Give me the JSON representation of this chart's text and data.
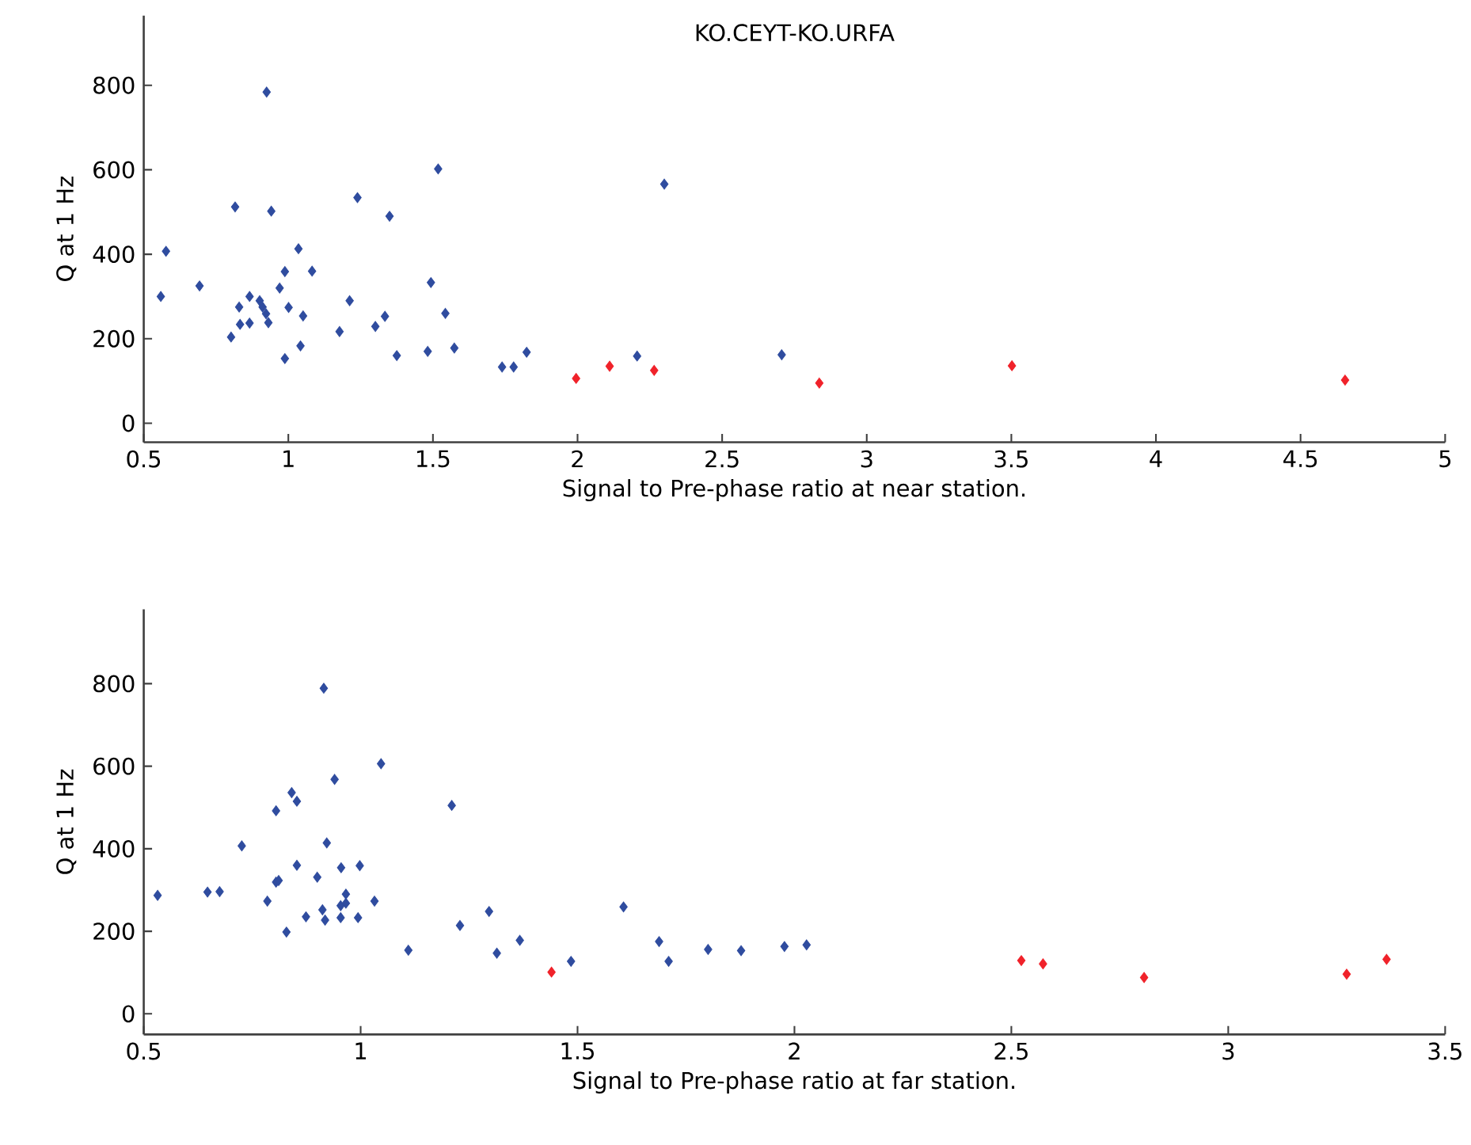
{
  "chart_data": [
    {
      "type": "scatter",
      "title": "KO.CEYT-KO.URFA",
      "xlabel": "Signal to Pre-phase ratio at near station.",
      "ylabel": "Q at 1 Hz",
      "xlim": [
        0.5,
        5
      ],
      "xticks": [
        0.5,
        1,
        1.5,
        2,
        2.5,
        3,
        3.5,
        4,
        4.5,
        5
      ],
      "ylim": [
        -45,
        965
      ],
      "yticks": [
        0,
        200,
        400,
        600,
        800
      ],
      "marker": "diamond",
      "series": [
        {
          "color": "#2f4c9f",
          "x": [
            0.577,
            0.559,
            0.693,
            0.816,
            0.925,
            0.941,
            0.802,
            0.83,
            0.833,
            0.866,
            0.866,
            0.901,
            0.911,
            0.923,
            0.931,
            0.97,
            0.988,
            1.001,
            0.988,
            1.035,
            1.051,
            1.042,
            1.082,
            1.177,
            1.212,
            1.239,
            1.301,
            1.334,
            1.35,
            1.375,
            1.482,
            1.493,
            1.518,
            1.543,
            1.574,
            1.739,
            1.779,
            1.824,
            2.206,
            2.3,
            2.706
          ],
          "values": [
            407,
            300,
            325,
            512,
            784,
            502,
            204,
            275,
            234,
            300,
            237,
            290,
            275,
            259,
            238,
            320,
            359,
            274,
            153,
            413,
            254,
            183,
            360,
            217,
            290,
            534,
            229,
            253,
            490,
            160,
            170,
            333,
            602,
            260,
            178,
            133,
            133,
            168,
            159,
            566,
            162
          ]
        },
        {
          "color": "#f0222a",
          "x": [
            1.995,
            2.111,
            2.265,
            2.836,
            3.502,
            4.654
          ],
          "values": [
            106,
            135,
            125,
            95,
            136,
            102
          ]
        }
      ]
    },
    {
      "type": "scatter",
      "xlabel": "Signal to Pre-phase ratio at far station.",
      "ylabel": "Q at 1 Hz",
      "xlim": [
        0.5,
        3.5
      ],
      "xticks": [
        0.5,
        1,
        1.5,
        2,
        2.5,
        3,
        3.5
      ],
      "ylim": [
        -50,
        980
      ],
      "yticks": [
        0,
        200,
        400,
        600,
        800
      ],
      "marker": "diamond",
      "series": [
        {
          "color": "#2f4c9f",
          "x": [
            0.532,
            0.647,
            0.675,
            0.726,
            0.785,
            0.805,
            0.805,
            0.811,
            0.829,
            0.841,
            0.853,
            0.853,
            0.874,
            0.9,
            0.912,
            0.918,
            0.915,
            0.922,
            0.94,
            0.955,
            0.954,
            0.954,
            0.966,
            0.966,
            0.994,
            0.998,
            1.032,
            1.047,
            1.11,
            1.21,
            1.229,
            1.296,
            1.314,
            1.367,
            1.485,
            1.606,
            1.688,
            1.71,
            1.801,
            1.877,
            1.977,
            2.028
          ],
          "values": [
            287,
            295,
            296,
            407,
            273,
            492,
            319,
            323,
            198,
            536,
            515,
            360,
            235,
            331,
            252,
            227,
            789,
            414,
            568,
            354,
            262,
            233,
            290,
            268,
            233,
            359,
            273,
            606,
            154,
            505,
            214,
            248,
            147,
            178,
            127,
            259,
            175,
            127,
            156,
            153,
            163,
            167
          ]
        },
        {
          "color": "#f0222a",
          "x": [
            1.44,
            2.523,
            2.573,
            2.806,
            3.273,
            3.365
          ],
          "values": [
            101,
            129,
            121,
            88,
            96,
            132
          ]
        }
      ]
    }
  ]
}
